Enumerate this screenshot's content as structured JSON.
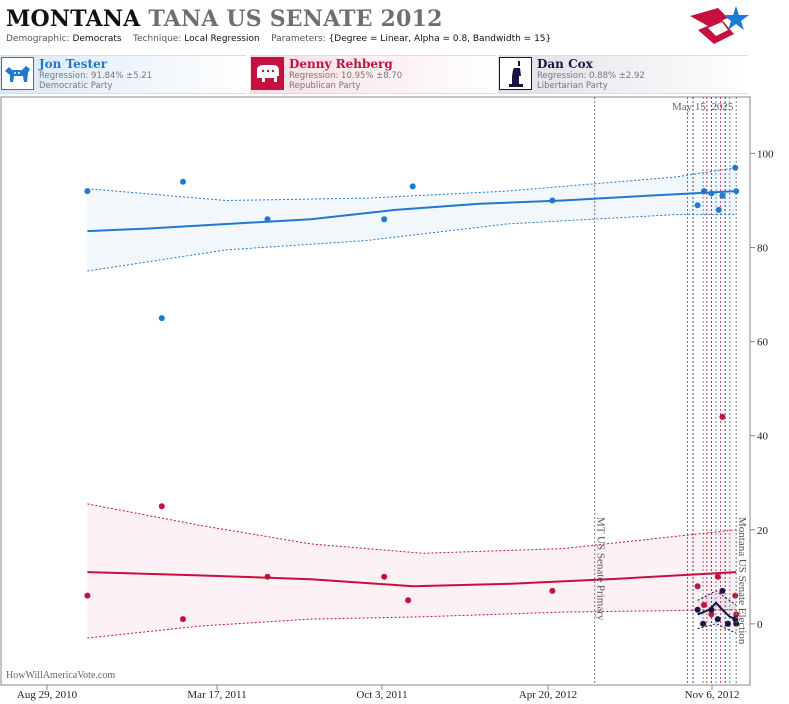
{
  "header": {
    "title_main": "MONTANA",
    "title_sub": "TANA US SENATE 2012",
    "demographic_label": "Demographic:",
    "demographic_value": "Democrats",
    "technique_label": "Technique:",
    "technique_value": "Local Regression",
    "parameters_label": "Parameters:",
    "parameters_value": "{Degree = Linear, Alpha = 0.8, Bandwidth = 15}"
  },
  "candidates": [
    {
      "name": "Jon Tester",
      "regression": "Regression: 91.84% ±5.21",
      "party": "Democratic Party",
      "color": "#1f78d1",
      "icon": "donkey-icon"
    },
    {
      "name": "Denny Rehberg",
      "regression": "Regression: 10.95% ±8.70",
      "party": "Republican Party",
      "color": "#c8103e",
      "icon": "elephant-icon"
    },
    {
      "name": "Dan Cox",
      "regression": "Regression: 0.88% ±2.92",
      "party": "Libertarian Party",
      "color": "#1a1446",
      "icon": "liberty-statue-icon"
    }
  ],
  "watermark": "HowWillAmericaVote.com",
  "date_stamp": "May 15, 2025",
  "chart_data": {
    "type": "scatter",
    "x_ticks": [
      "Aug 29, 2010",
      "Mar 17, 2011",
      "Oct 3, 2011",
      "Apr 20, 2012",
      "Nov 6, 2012"
    ],
    "x_range": [
      "2010-08-29",
      "2012-11-21"
    ],
    "y_ticks": [
      0,
      20,
      40,
      60,
      80,
      100
    ],
    "ylim": [
      -13,
      112
    ],
    "grid": false,
    "events": [
      {
        "label": "MT US Senate Primary",
        "date": "2012-06-05"
      },
      {
        "label": "Montana US Senate Election",
        "date": "2012-11-06"
      }
    ],
    "poll_lines": [
      "2012-09-14",
      "2012-09-20",
      "2012-10-01",
      "2012-10-05",
      "2012-10-10",
      "2012-10-15",
      "2012-10-20",
      "2012-10-25",
      "2012-10-30"
    ],
    "series": [
      {
        "name": "Jon Tester",
        "color": "#1f78d1",
        "points": [
          [
            "2010-12-01",
            92
          ],
          [
            "2011-02-20",
            65
          ],
          [
            "2011-03-15",
            94
          ],
          [
            "2011-06-15",
            86
          ],
          [
            "2011-10-20",
            86
          ],
          [
            "2011-11-20",
            93
          ],
          [
            "2012-04-20",
            90
          ],
          [
            "2012-09-25",
            89
          ],
          [
            "2012-10-02",
            92
          ],
          [
            "2012-10-10",
            91.5
          ],
          [
            "2012-10-18",
            88
          ],
          [
            "2012-10-22",
            91
          ],
          [
            "2012-11-05",
            97
          ],
          [
            "2012-11-06",
            92
          ]
        ],
        "trend": [
          [
            "2010-12-01",
            83.5
          ],
          [
            "2011-02-01",
            84
          ],
          [
            "2011-05-01",
            85
          ],
          [
            "2011-08-01",
            86
          ],
          [
            "2011-11-01",
            88
          ],
          [
            "2012-02-01",
            89.3
          ],
          [
            "2012-05-01",
            90
          ],
          [
            "2012-08-01",
            91
          ],
          [
            "2012-11-06",
            92
          ]
        ],
        "band_upper": [
          [
            "2010-12-01",
            92.5
          ],
          [
            "2011-05-01",
            90
          ],
          [
            "2011-10-01",
            90.5
          ],
          [
            "2012-03-01",
            92
          ],
          [
            "2012-09-01",
            95
          ],
          [
            "2012-11-06",
            97
          ]
        ],
        "band_lower": [
          [
            "2010-12-01",
            75
          ],
          [
            "2011-05-01",
            79.5
          ],
          [
            "2011-10-01",
            81.5
          ],
          [
            "2012-03-01",
            85
          ],
          [
            "2012-09-01",
            87
          ],
          [
            "2012-11-06",
            87
          ]
        ]
      },
      {
        "name": "Denny Rehberg",
        "color": "#c8103e",
        "points": [
          [
            "2010-12-01",
            6
          ],
          [
            "2011-02-20",
            25
          ],
          [
            "2011-03-15",
            1
          ],
          [
            "2011-06-15",
            10
          ],
          [
            "2011-10-20",
            10
          ],
          [
            "2011-11-15",
            5
          ],
          [
            "2012-04-20",
            7
          ],
          [
            "2012-09-25",
            8
          ],
          [
            "2012-10-02",
            4
          ],
          [
            "2012-10-10",
            2
          ],
          [
            "2012-10-17",
            10
          ],
          [
            "2012-10-22",
            44
          ],
          [
            "2012-11-05",
            6
          ],
          [
            "2012-11-06",
            2
          ]
        ],
        "trend": [
          [
            "2010-12-01",
            11
          ],
          [
            "2011-04-01",
            10.3
          ],
          [
            "2011-08-01",
            9.5
          ],
          [
            "2011-11-20",
            8
          ],
          [
            "2012-03-01",
            8.5
          ],
          [
            "2012-07-01",
            9.6
          ],
          [
            "2012-11-06",
            11
          ]
        ],
        "band_upper": [
          [
            "2010-12-01",
            25.5
          ],
          [
            "2011-04-01",
            21
          ],
          [
            "2011-08-01",
            17
          ],
          [
            "2011-12-01",
            15
          ],
          [
            "2012-05-01",
            16
          ],
          [
            "2012-11-06",
            20
          ]
        ],
        "band_lower": [
          [
            "2010-12-01",
            -3
          ],
          [
            "2011-04-01",
            -0.5
          ],
          [
            "2011-08-01",
            1
          ],
          [
            "2011-12-01",
            1.5
          ],
          [
            "2012-05-01",
            2.5
          ],
          [
            "2012-11-06",
            3
          ]
        ]
      },
      {
        "name": "Dan Cox",
        "color": "#1a1446",
        "points": [
          [
            "2012-09-25",
            3
          ],
          [
            "2012-10-01",
            0
          ],
          [
            "2012-10-10",
            3
          ],
          [
            "2012-10-17",
            1
          ],
          [
            "2012-10-22",
            7
          ],
          [
            "2012-10-28",
            0
          ],
          [
            "2012-11-05",
            1
          ],
          [
            "2012-11-06",
            0
          ]
        ],
        "trend": [
          [
            "2012-09-25",
            2
          ],
          [
            "2012-10-08",
            3
          ],
          [
            "2012-10-15",
            4.5
          ],
          [
            "2012-10-22",
            3
          ],
          [
            "2012-10-30",
            1.5
          ],
          [
            "2012-11-06",
            1
          ]
        ],
        "band_upper": [
          [
            "2012-09-25",
            5
          ],
          [
            "2012-10-15",
            7
          ],
          [
            "2012-11-06",
            4
          ]
        ],
        "band_lower": [
          [
            "2012-09-25",
            -1
          ],
          [
            "2012-10-15",
            0
          ],
          [
            "2012-11-06",
            -2
          ]
        ]
      }
    ]
  }
}
